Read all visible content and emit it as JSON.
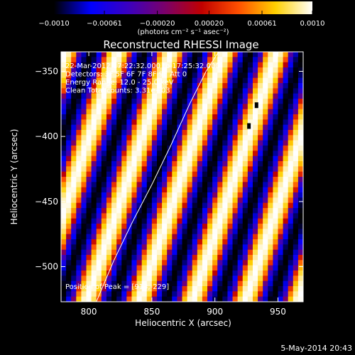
{
  "chart_data": {
    "type": "heatmap",
    "title": "Reconstructed RHESSI Image",
    "xlabel": "Heliocentric X (arcsec)",
    "ylabel": "Heliocentric Y (arcsec)",
    "xlim": [
      778,
      970
    ],
    "ylim": [
      -527,
      -335
    ],
    "x_ticks": [
      800,
      850,
      900,
      950
    ],
    "y_ticks": [
      -350,
      -400,
      -450,
      -500
    ],
    "colorbar": {
      "range": [
        -0.001,
        0.001
      ],
      "ticks": [
        -0.001,
        -0.00061,
        -0.0002,
        0.0002,
        0.00061,
        0.001
      ],
      "tick_labels": [
        "−0.0010",
        "−0.00061",
        "−0.00020",
        "0.00020",
        "0.00061",
        "0.0010"
      ],
      "unit_label": "(photons cm⁻² s⁻¹ asec⁻²)",
      "stops": [
        "#000000",
        "#0000ff",
        "#3a00c0",
        "#7a006a",
        "#c00000",
        "#ff5000",
        "#ffd000",
        "#ffffff"
      ]
    },
    "annotations": [
      "22-Mar-2012 17:22:32.000 to 17:25:32.000",
      "Detectors: 3F 5F 6F 7F 8F 9F Att 0",
      "Energy Range: 12.0 - 25.0 keV",
      "Clean    Total counts: 3.31e+03"
    ],
    "peak_label": "Position of Peak = [913,-229]",
    "stripe_pattern": {
      "period_x_arcsec": 42,
      "slope_dx_per_dy": -0.35,
      "grid_cells": [
        48,
        48
      ]
    },
    "limb_curve": {
      "x": [
        806,
        820,
        835,
        850,
        865,
        880,
        893,
        903
      ],
      "y": [
        -527,
        -495,
        -465,
        -437,
        -407,
        -375,
        -350,
        -335
      ]
    },
    "dark_blocks": [
      {
        "x": 933,
        "y": -376
      },
      {
        "x": 927,
        "y": -392
      }
    ]
  },
  "footer": {
    "date": "5-May-2014 20:43"
  }
}
